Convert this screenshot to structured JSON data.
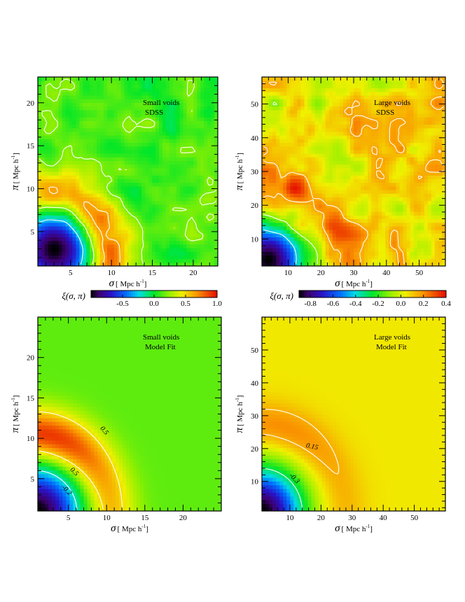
{
  "chart_data": [
    {
      "id": "small-sdss",
      "type": "heatmap",
      "annotations": [
        "Small voids",
        "SDSS"
      ],
      "xlabel_symbol": "σ",
      "xlabel_unit": "[ Mpc  h",
      "xlabel_exp": "-1",
      "xlabel_close": "]",
      "ylabel_symbol": "π",
      "ylabel_unit": "[ Mpc  h",
      "ylabel_exp": "-1",
      "ylabel_close": "]",
      "xlim": [
        1,
        23
      ],
      "ylim": [
        1,
        23
      ],
      "xticks": [
        5,
        10,
        15,
        20
      ],
      "yticks": [
        5,
        10,
        15,
        20
      ],
      "colorbar": {
        "label": "ξ(σ, π)",
        "min": -1.0,
        "max": 1.0,
        "ticks": [
          "-0.5",
          "0.0",
          "0.5",
          "1.0"
        ],
        "tick_values": [
          -0.5,
          0.0,
          0.5,
          1.0
        ]
      },
      "field": {
        "kind": "data",
        "core": {
          "x": 3,
          "y": 3,
          "radius": 4.0,
          "value": -1.0
        },
        "ring": {
          "radius": 10.0,
          "width": 3.0,
          "value": 0.9,
          "angle_peak": 0.55
        },
        "background": 0.1
      },
      "contour_labels": []
    },
    {
      "id": "large-sdss",
      "type": "heatmap",
      "annotations": [
        "Large voids",
        "SDSS"
      ],
      "xlabel_symbol": "σ",
      "xlabel_unit": "[ Mpc  h",
      "xlabel_exp": "-1",
      "xlabel_close": "]",
      "ylabel_symbol": "π",
      "ylabel_unit": "[ Mpc  h",
      "ylabel_exp": "-1",
      "ylabel_close": "]",
      "xlim": [
        2,
        58
      ],
      "ylim": [
        2,
        58
      ],
      "xticks": [
        10,
        20,
        30,
        40,
        50
      ],
      "yticks": [
        10,
        20,
        30,
        40,
        50
      ],
      "colorbar": {
        "label": "ξ(σ, π)",
        "min": -0.9,
        "max": 0.4,
        "ticks": [
          "-0.8",
          "-0.6",
          "-0.4",
          "-0.2",
          "0.0",
          "0.2",
          "0.4"
        ],
        "tick_values": [
          -0.8,
          -0.6,
          -0.4,
          -0.2,
          0.0,
          0.2,
          0.4
        ]
      },
      "field": {
        "kind": "data",
        "core": {
          "x": 4,
          "y": 4,
          "radius": 11.0,
          "value": -0.9
        },
        "ring": {
          "radius": 26.0,
          "width": 9.0,
          "value": 0.3,
          "angle_peak": 1.1
        },
        "background": 0.05
      },
      "contour_labels": []
    },
    {
      "id": "small-model",
      "type": "heatmap",
      "annotations": [
        "Small voids",
        "Model Fit"
      ],
      "xlabel_symbol": "σ",
      "xlabel_unit": "[ Mpc  h",
      "xlabel_exp": "-1",
      "xlabel_close": "]",
      "ylabel_symbol": "π",
      "ylabel_unit": "[ Mpc  h",
      "ylabel_exp": "-1",
      "ylabel_close": "]",
      "xlim": [
        1,
        25
      ],
      "ylim": [
        1,
        25
      ],
      "xticks": [
        5,
        10,
        15,
        20
      ],
      "yticks": [
        5,
        10,
        15,
        20
      ],
      "colorbar_ref": "small-sdss",
      "field": {
        "kind": "model",
        "core": {
          "x": 1,
          "y": 1,
          "radius": 5.0,
          "value": -1.0
        },
        "ring": {
          "radius": 10.5,
          "width": 3.2,
          "value": 0.95,
          "angle_peak": 1.3
        },
        "background": 0.15
      },
      "contour_levels": [
        0.5,
        -0.2
      ],
      "contour_labels": [
        "0.5",
        "0.5",
        "-0.2"
      ]
    },
    {
      "id": "large-model",
      "type": "heatmap",
      "annotations": [
        "Large voids",
        "Model Fit"
      ],
      "xlabel_symbol": "σ",
      "xlabel_unit": "[ Mpc  h",
      "xlabel_exp": "-1",
      "xlabel_close": "]",
      "ylabel_symbol": "π",
      "ylabel_unit": "[ Mpc  h",
      "ylabel_exp": "-1",
      "ylabel_close": "]",
      "xlim": [
        1,
        60
      ],
      "ylim": [
        1,
        60
      ],
      "xticks": [
        10,
        20,
        30,
        40,
        50
      ],
      "yticks": [
        10,
        20,
        30,
        40,
        50
      ],
      "colorbar_ref": "large-sdss",
      "field": {
        "kind": "model",
        "core": {
          "x": 1,
          "y": 1,
          "radius": 13.0,
          "value": -0.9
        },
        "ring": {
          "radius": 27.0,
          "width": 7.5,
          "value": 0.22,
          "angle_peak": 1.25
        },
        "background": 0.05
      },
      "contour_levels": [
        0.15,
        -0.3
      ],
      "contour_labels": [
        "0.15",
        "-0.3"
      ]
    }
  ]
}
